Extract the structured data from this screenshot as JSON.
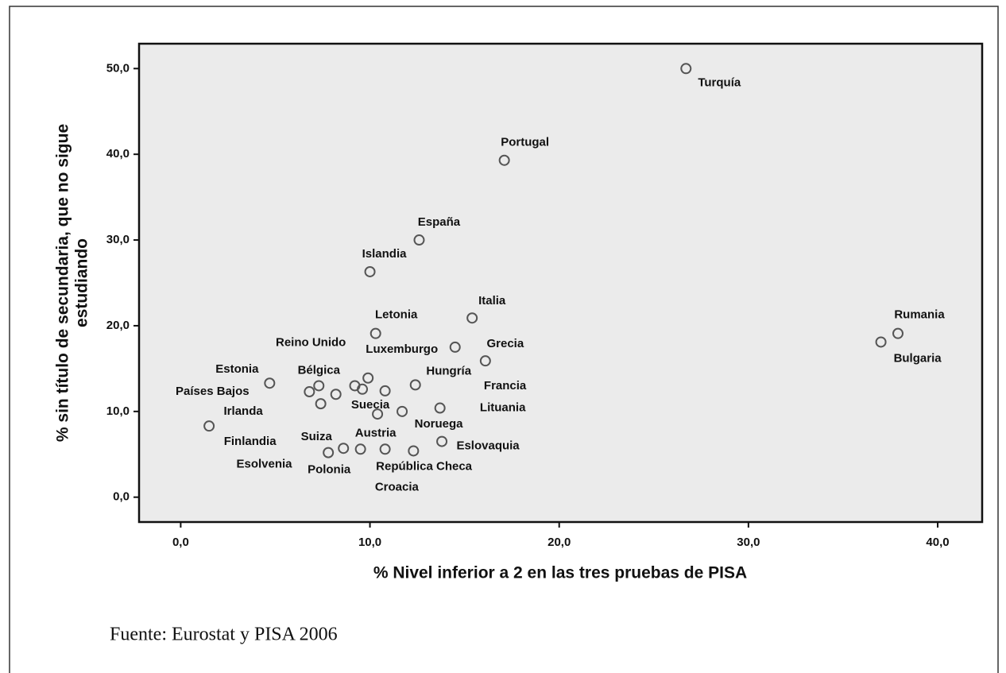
{
  "chart_data": {
    "type": "scatter",
    "xlabel": "% Nivel inferior a 2 en las tres pruebas de PISA",
    "ylabel": [
      "% sin título de secundaria, que no sigue",
      "estudiando"
    ],
    "source": "Fuente: Eurostat y PISA 2006",
    "xlim": [
      -2.2,
      42.35
    ],
    "ylim": [
      -2.9,
      52.9
    ],
    "xticks": [
      {
        "value": 0,
        "label": "0,0"
      },
      {
        "value": 10,
        "label": "10,0"
      },
      {
        "value": 20,
        "label": "20,0"
      },
      {
        "value": 30,
        "label": "30,0"
      },
      {
        "value": 40,
        "label": "40,0"
      }
    ],
    "yticks": [
      {
        "value": 0,
        "label": "0,0"
      },
      {
        "value": 10,
        "label": "10,0"
      },
      {
        "value": 20,
        "label": "20,0"
      },
      {
        "value": 30,
        "label": "30,0"
      },
      {
        "value": 40,
        "label": "40,0"
      },
      {
        "value": 50,
        "label": "50,0"
      }
    ],
    "background": "#ebebeb",
    "marker_color": "#555555",
    "names": [
      "Turquía",
      "Portugal",
      "España",
      "Islandia",
      "Italia",
      "Letonia",
      "Rumania",
      "Bulgaria",
      "Reino Unido",
      "Luxemburgo",
      "Grecia",
      "Estonia",
      "Bélgica",
      "Hungría",
      "Países Bajos",
      "Francia",
      "Suecia",
      "Noruega",
      "Lituania",
      "Irlanda",
      "Finlandia",
      "Suiza",
      "Austria",
      "Eslovaquia",
      "Esolvenia",
      "Polonia",
      "República Checa",
      "Croacia",
      null,
      null
    ],
    "x": [
      26.7,
      17.1,
      12.6,
      10.0,
      15.4,
      10.3,
      37.9,
      37.0,
      9.9,
      14.5,
      16.1,
      4.7,
      7.3,
      12.4,
      6.8,
      10.8,
      10.4,
      11.7,
      13.7,
      1.5,
      7.4,
      8.6,
      9.5,
      13.8,
      9.2,
      7.8,
      10.8,
      12.3,
      8.2,
      9.6
    ],
    "y": [
      50.0,
      39.3,
      30.0,
      26.3,
      20.9,
      19.1,
      19.1,
      18.1,
      13.9,
      17.5,
      15.9,
      13.3,
      13.0,
      13.1,
      12.3,
      12.4,
      9.7,
      10.0,
      10.4,
      8.3,
      10.9,
      5.7,
      5.6,
      6.5,
      13.0,
      5.2,
      5.6,
      5.4,
      12.0,
      12.6
    ]
  }
}
